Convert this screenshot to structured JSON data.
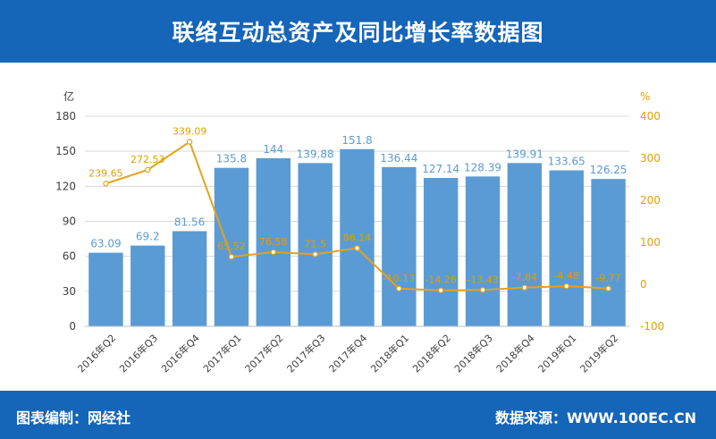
{
  "header": {
    "title": "联络互动总资产及同比增长率数据图"
  },
  "footer": {
    "left_text": "图表编制：网经社",
    "right_text": "数据来源：WWW.100EC.CN"
  },
  "colors": {
    "header_bg": "#1565b8",
    "bar": "#5b9bd5",
    "line": "#e6a11c"
  },
  "chart_data": {
    "type": "bar",
    "title": "联络互动总资产及同比增长率数据图",
    "categories": [
      "2016年Q2",
      "2016年Q3",
      "2016年Q4",
      "2017年Q1",
      "2017年Q2",
      "2017年Q3",
      "2017年Q4",
      "2018年Q1",
      "2018年Q2",
      "2018年Q3",
      "2018年Q4",
      "2019年Q1",
      "2019年Q2"
    ],
    "y_unit": "亿",
    "y2_unit": "%",
    "ylim": [
      0,
      180
    ],
    "yticks": [
      0,
      30,
      60,
      90,
      120,
      150,
      180
    ],
    "y2lim": [
      -100,
      400
    ],
    "y2ticks": [
      -100,
      0,
      100,
      200,
      300,
      400
    ],
    "series": [
      {
        "type": "bar",
        "axis": "left",
        "values": [
          63.09,
          69.2,
          81.56,
          135.8,
          144,
          139.88,
          151.8,
          136.44,
          127.14,
          128.39,
          139.91,
          133.65,
          126.25
        ],
        "labels": [
          "63.09",
          "69.2",
          "81.56",
          "135.8",
          "144",
          "139.88",
          "151.8",
          "136.44",
          "127.14",
          "128.39",
          "139.91",
          "133.65",
          "126.25"
        ]
      },
      {
        "type": "line",
        "axis": "right",
        "values": [
          239.65,
          272.53,
          339.09,
          65.52,
          76.58,
          71.5,
          86.14,
          -10.13,
          -14.26,
          -13.43,
          -7.84,
          -4.48,
          -9.77
        ],
        "labels": [
          "239.65",
          "272.53",
          "339.09",
          "65.52",
          "76.58",
          "71.5",
          "86.14",
          "-10.13",
          "-14.26",
          "-13.43",
          "-7.84",
          "-4.48",
          "-9.77"
        ]
      }
    ],
    "grid": true,
    "legend": "none"
  }
}
